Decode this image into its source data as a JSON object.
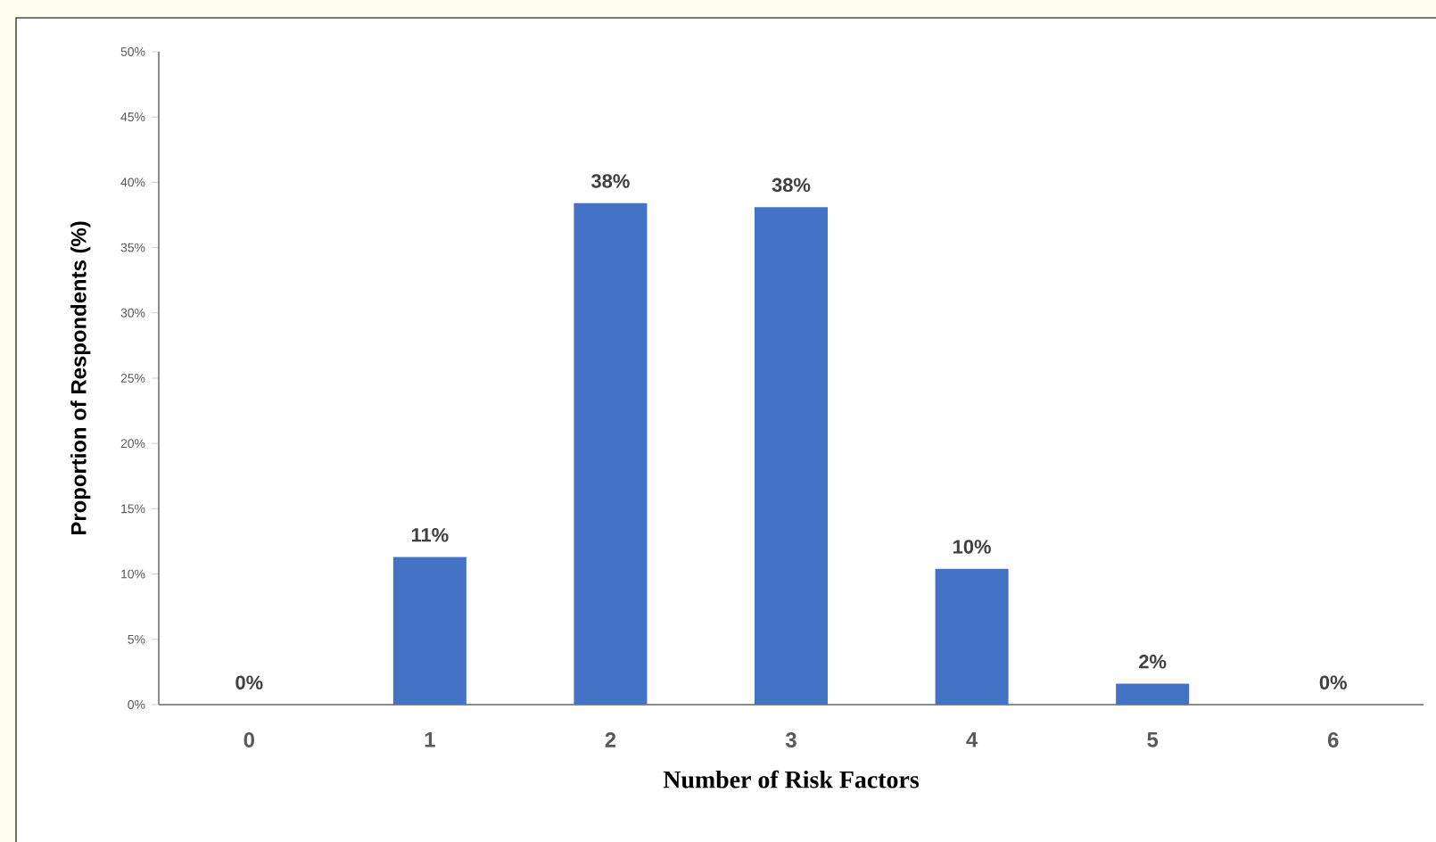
{
  "chart_data": {
    "type": "bar",
    "xlabel": "Number of Risk Factors",
    "ylabel": "Proportion of Respondents (%)",
    "categories": [
      "0",
      "1",
      "2",
      "3",
      "4",
      "5",
      "6"
    ],
    "values": [
      0,
      11.3,
      38.4,
      38.1,
      10.4,
      1.6,
      0
    ],
    "value_labels": [
      "0%",
      "11%",
      "38%",
      "38%",
      "10%",
      "2%",
      "0%"
    ],
    "color": "#4472c4",
    "ylim": [
      0,
      50
    ],
    "yticks": [
      {
        "value": 0,
        "label": "0%"
      },
      {
        "value": 5,
        "label": "5%"
      },
      {
        "value": 10,
        "label": "10%"
      },
      {
        "value": 15,
        "label": "15%"
      },
      {
        "value": 20,
        "label": "20%"
      },
      {
        "value": 25,
        "label": "25%"
      },
      {
        "value": 30,
        "label": "30%"
      },
      {
        "value": 35,
        "label": "35%"
      },
      {
        "value": 40,
        "label": "40%"
      },
      {
        "value": 45,
        "label": "45%"
      },
      {
        "value": 50,
        "label": "50%"
      }
    ],
    "grid": false
  }
}
